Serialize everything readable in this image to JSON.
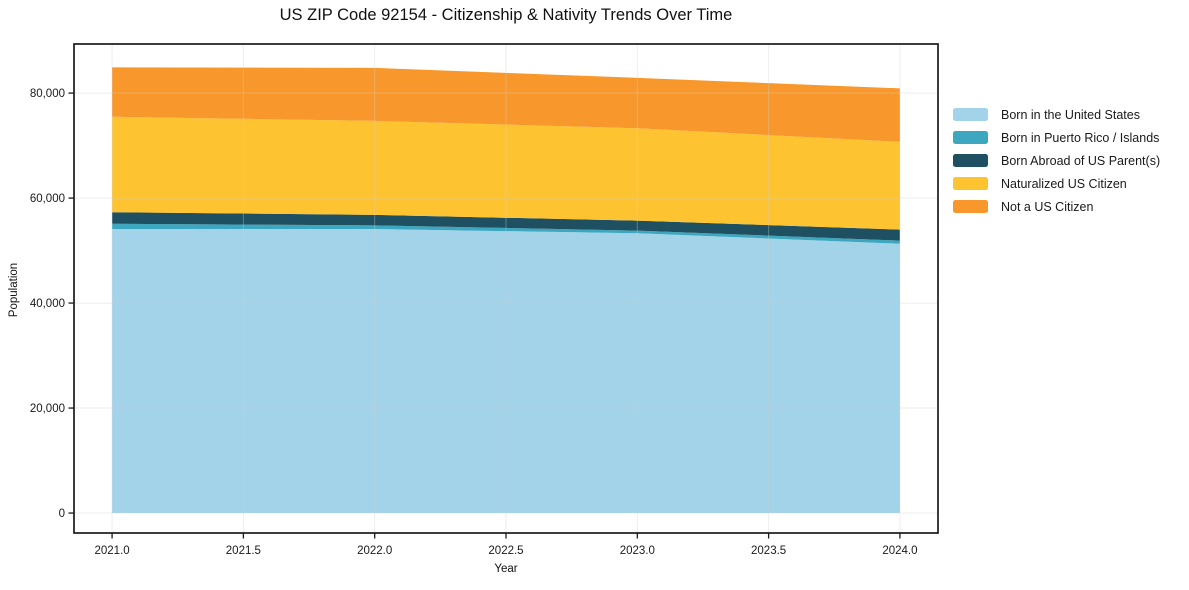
{
  "title": "US ZIP Code 92154 - Citizenship & Nativity Trends Over Time",
  "chart_data": {
    "type": "area",
    "stacked": true,
    "title": "US ZIP Code 92154 - Citizenship & Nativity Trends Over Time",
    "xlabel": "Year",
    "ylabel": "Population",
    "x": [
      2021,
      2022,
      2023,
      2024
    ],
    "series": [
      {
        "name": "Born in the United States",
        "color": "#a3d3e8",
        "values": [
          54100,
          54100,
          53300,
          51300
        ]
      },
      {
        "name": "Born in Puerto Rico / Islands",
        "color": "#3da7bf",
        "values": [
          1000,
          700,
          500,
          600
        ]
      },
      {
        "name": "Born Abroad of US Parent(s)",
        "color": "#1f5062",
        "values": [
          2200,
          2000,
          1900,
          2100
        ]
      },
      {
        "name": "Naturalized US Citizen",
        "color": "#fdc330",
        "values": [
          18200,
          17900,
          17600,
          16700
        ]
      },
      {
        "name": "Not a US Citizen",
        "color": "#f8982c",
        "values": [
          9400,
          10100,
          9600,
          10200
        ]
      }
    ],
    "totals": [
      84900,
      84800,
      82900,
      80900
    ],
    "x_ticks": [
      "2021.0",
      "2021.5",
      "2022.0",
      "2022.5",
      "2023.0",
      "2023.5",
      "2024.0"
    ],
    "x_tick_values": [
      2021.0,
      2021.5,
      2022.0,
      2022.5,
      2023.0,
      2023.5,
      2024.0
    ],
    "y_ticks": [
      "0",
      "20,000",
      "40,000",
      "60,000",
      "80,000"
    ],
    "y_tick_values": [
      0,
      20000,
      40000,
      60000,
      80000
    ],
    "xlim": [
      2020.855,
      2024.145
    ],
    "ylim": [
      -3800,
      89350
    ],
    "grid": true,
    "legend_position": "right",
    "colors": {
      "spine": "#1a1a1a",
      "grid": "#d0d0d0",
      "tick_label": "#1a1a1a",
      "background": "#ffffff"
    }
  }
}
